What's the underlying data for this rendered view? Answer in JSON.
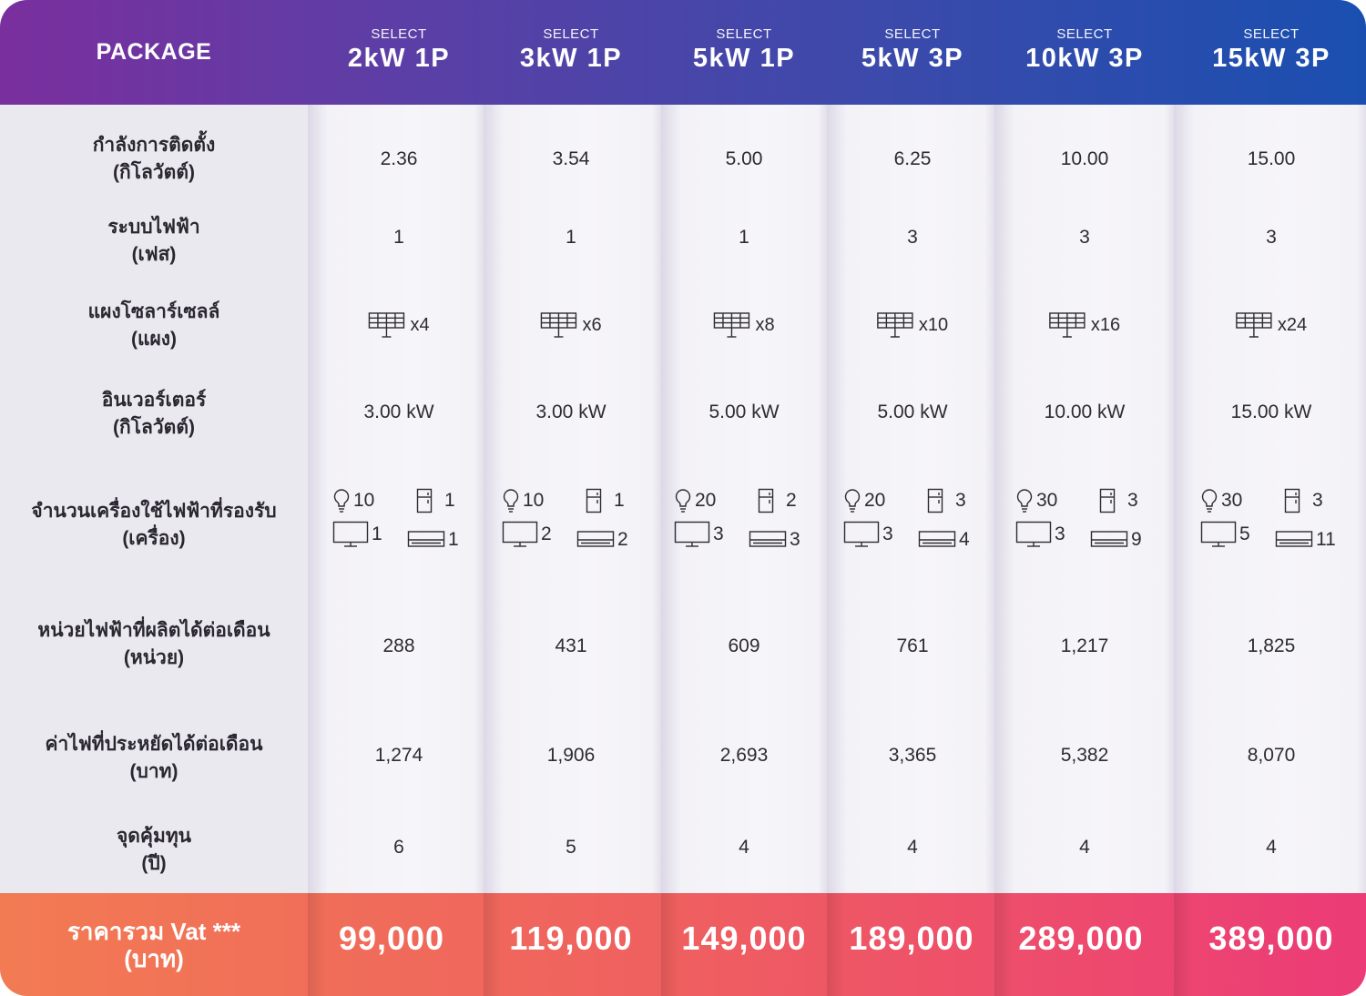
{
  "header": {
    "package_label": "PACKAGE",
    "select_label": "SELECT",
    "packages": [
      "2kW 1P",
      "3kW 1P",
      "5kW 1P",
      "5kW 3P",
      "10kW 3P",
      "15kW 3P"
    ]
  },
  "rows": {
    "installed_capacity": {
      "label": "กำลังการติดตั้ง",
      "unit": "(กิโลวัตต์)",
      "values": [
        "2.36",
        "3.54",
        "5.00",
        "6.25",
        "10.00",
        "15.00"
      ]
    },
    "electrical_system": {
      "label": "ระบบไฟฟ้า",
      "unit": "(เฟส)",
      "values": [
        "1",
        "1",
        "1",
        "3",
        "3",
        "3"
      ]
    },
    "solar_panels": {
      "label": "แผงโซลาร์เซลล์",
      "unit": "(แผง)",
      "values": [
        "x4",
        "x6",
        "x8",
        "x10",
        "x16",
        "x24"
      ]
    },
    "inverter": {
      "label": "อินเวอร์เตอร์",
      "unit": "(กิโลวัตต์)",
      "values": [
        "3.00 kW",
        "3.00 kW",
        "5.00 kW",
        "5.00 kW",
        "10.00 kW",
        "15.00 kW"
      ]
    },
    "appliances": {
      "label": "จำนวนเครื่องใช้ไฟฟ้าที่รองรับ",
      "unit": "(เครื่อง)",
      "values": [
        {
          "bulb": "10",
          "fridge": "1",
          "tv": "1",
          "ac": "1"
        },
        {
          "bulb": "10",
          "fridge": "1",
          "tv": "2",
          "ac": "2"
        },
        {
          "bulb": "20",
          "fridge": "2",
          "tv": "3",
          "ac": "3"
        },
        {
          "bulb": "20",
          "fridge": "3",
          "tv": "3",
          "ac": "4"
        },
        {
          "bulb": "30",
          "fridge": "3",
          "tv": "3",
          "ac": "9"
        },
        {
          "bulb": "30",
          "fridge": "3",
          "tv": "5",
          "ac": "11"
        }
      ]
    },
    "monthly_units": {
      "label": "หน่วยไฟฟ้าที่ผลิตได้ต่อเดือน",
      "unit": "(หน่วย)",
      "values": [
        "288",
        "431",
        "609",
        "761",
        "1,217",
        "1,825"
      ]
    },
    "monthly_savings": {
      "label": "ค่าไฟที่ประหยัดได้ต่อเดือน",
      "unit": "(บาท)",
      "values": [
        "1,274",
        "1,906",
        "2,693",
        "3,365",
        "5,382",
        "8,070"
      ]
    },
    "payback": {
      "label": "จุดคุ้มทุน",
      "unit": "(ปี)",
      "values": [
        "6",
        "5",
        "4",
        "4",
        "4",
        "4"
      ]
    }
  },
  "footer": {
    "label": "ราคารวม Vat ***",
    "unit": "(บาท)",
    "prices": [
      "99,000",
      "119,000",
      "149,000",
      "189,000",
      "289,000",
      "389,000"
    ]
  },
  "icons": {
    "panel": "solar-panel-icon",
    "bulb": "light-bulb-icon",
    "fridge": "refrigerator-icon",
    "tv": "tv-icon",
    "ac": "air-conditioner-icon"
  },
  "colors": {
    "header_start": "#7a2f9e",
    "header_end": "#1a4fb0",
    "footer_start": "#f27b53",
    "footer_end": "#ec3b77"
  }
}
